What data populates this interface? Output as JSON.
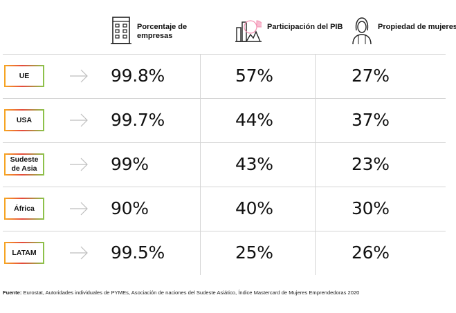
{
  "chart_data": {
    "type": "table",
    "columns": [
      {
        "label": "Porcentaje de empresas",
        "icon": "building-icon"
      },
      {
        "label": "Participación del PIB",
        "icon": "gdp-chart-icon"
      },
      {
        "label": "Propiedad de mujeres",
        "icon": "woman-icon"
      }
    ],
    "rows": [
      {
        "region": "UE",
        "values": [
          "99.8%",
          "57%",
          "27%"
        ]
      },
      {
        "region": "USA",
        "values": [
          "99.7%",
          "44%",
          "37%"
        ]
      },
      {
        "region": "Sudeste de Asia",
        "values": [
          "99%",
          "43%",
          "23%"
        ]
      },
      {
        "region": "África",
        "values": [
          "90%",
          "40%",
          "30%"
        ]
      },
      {
        "region": "LATAM",
        "values": [
          "99.5%",
          "25%",
          "26%"
        ]
      }
    ],
    "source_label": "Fuente:",
    "source_text": "Eurostat, Autoridades individuales de PYMEs, Asociación de naciones del Sudeste Asiático, Índice Mastercard de Mujeres Emprendedoras 2020"
  },
  "colors": {
    "badge_gradient": [
      "#f6a623",
      "#e64a3d",
      "#8bc34a"
    ],
    "grid_line": "#d4d4d4",
    "arrow": "#bdbdbd",
    "icon_accent": "#f48fb1"
  }
}
